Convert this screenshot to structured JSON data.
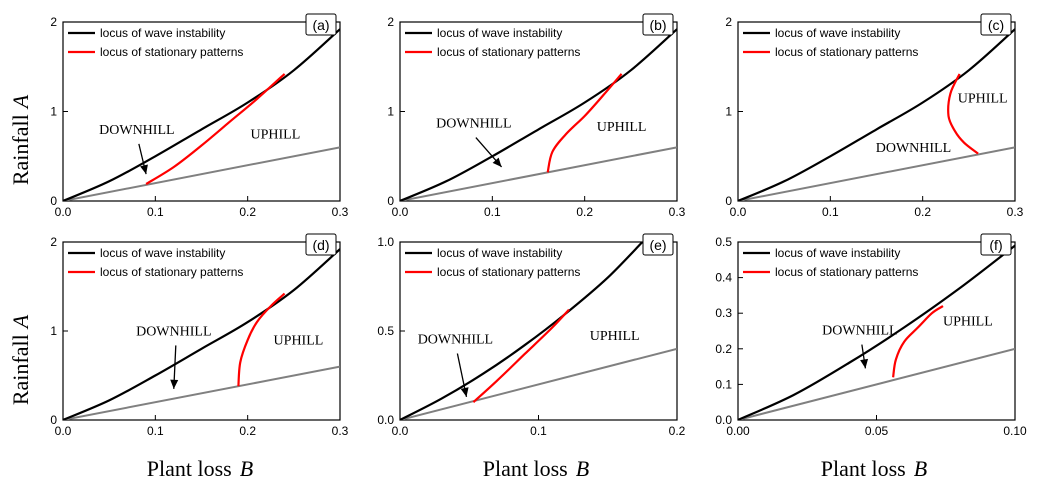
{
  "figure": {
    "ylabel": "Rainfall",
    "ylabel_symbol": "A",
    "xlabel": "Plant loss",
    "xlabel_symbol": "B"
  },
  "colors": {
    "wave": "#000000",
    "stationary": "#ff0000",
    "baseline": "#808080"
  },
  "chart_data": [
    {
      "type": "line",
      "panel": "(a)",
      "xlim": [
        0,
        0.3
      ],
      "ylim": [
        0,
        2
      ],
      "xticks": [
        "0.0",
        "0.1",
        "0.2",
        "0.3"
      ],
      "xtick_values": [
        0,
        0.1,
        0.2,
        0.3
      ],
      "yticks": [
        "0",
        "1",
        "2"
      ],
      "ytick_values": [
        0,
        1,
        2
      ],
      "legend": [
        "locus of wave instability",
        "locus of stationary patterns"
      ],
      "series": [
        {
          "name": "locus of wave instability",
          "color": "#000000",
          "x": [
            0,
            0.05,
            0.1,
            0.15,
            0.2,
            0.25,
            0.3
          ],
          "y": [
            0,
            0.22,
            0.5,
            0.8,
            1.1,
            1.46,
            1.92
          ]
        },
        {
          "name": "locus of stationary patterns",
          "color": "#ff0000",
          "x": [
            0.09,
            0.12,
            0.15,
            0.18,
            0.21,
            0.24
          ],
          "y": [
            0.19,
            0.38,
            0.62,
            0.88,
            1.14,
            1.42
          ]
        },
        {
          "color": "#808080",
          "x": [
            0,
            0.3
          ],
          "y": [
            0,
            0.6
          ]
        }
      ],
      "annotations": [
        {
          "text": "DOWNHILL",
          "x": 0.08,
          "y": 0.75,
          "arrow_to": [
            0.09,
            0.3
          ]
        },
        {
          "text": "UPHILL",
          "x": 0.23,
          "y": 0.7
        }
      ]
    },
    {
      "type": "line",
      "panel": "(b)",
      "xlim": [
        0,
        0.3
      ],
      "ylim": [
        0,
        2
      ],
      "xticks": [
        "0.0",
        "0.1",
        "0.2",
        "0.3"
      ],
      "xtick_values": [
        0,
        0.1,
        0.2,
        0.3
      ],
      "yticks": [
        "0",
        "1",
        "2"
      ],
      "ytick_values": [
        0,
        1,
        2
      ],
      "legend": [
        "locus of wave instability",
        "locus of stationary patterns"
      ],
      "series": [
        {
          "name": "locus of wave instability",
          "color": "#000000",
          "x": [
            0,
            0.05,
            0.1,
            0.15,
            0.2,
            0.25,
            0.3
          ],
          "y": [
            0,
            0.22,
            0.5,
            0.8,
            1.1,
            1.46,
            1.92
          ]
        },
        {
          "name": "locus of stationary patterns",
          "color": "#ff0000",
          "x": [
            0.16,
            0.165,
            0.18,
            0.2,
            0.22,
            0.24
          ],
          "y": [
            0.32,
            0.55,
            0.75,
            0.95,
            1.18,
            1.42
          ]
        },
        {
          "color": "#808080",
          "x": [
            0,
            0.3
          ],
          "y": [
            0,
            0.6
          ]
        }
      ],
      "annotations": [
        {
          "text": "DOWNHILL",
          "x": 0.08,
          "y": 0.82,
          "arrow_to": [
            0.11,
            0.38
          ]
        },
        {
          "text": "UPHILL",
          "x": 0.24,
          "y": 0.78
        }
      ]
    },
    {
      "type": "line",
      "panel": "(c)",
      "xlim": [
        0,
        0.3
      ],
      "ylim": [
        0,
        2
      ],
      "xticks": [
        "0.0",
        "0.1",
        "0.2",
        "0.3"
      ],
      "xtick_values": [
        0,
        0.1,
        0.2,
        0.3
      ],
      "yticks": [
        "0",
        "1",
        "2"
      ],
      "ytick_values": [
        0,
        1,
        2
      ],
      "legend": [
        "locus of wave instability",
        "locus of stationary patterns"
      ],
      "series": [
        {
          "name": "locus of wave instability",
          "color": "#000000",
          "x": [
            0,
            0.05,
            0.1,
            0.15,
            0.2,
            0.25,
            0.3
          ],
          "y": [
            0,
            0.22,
            0.5,
            0.8,
            1.1,
            1.46,
            1.92
          ]
        },
        {
          "name": "locus of stationary patterns",
          "color": "#ff0000",
          "x": [
            0.24,
            0.23,
            0.228,
            0.235,
            0.245,
            0.26
          ],
          "y": [
            1.42,
            1.2,
            0.95,
            0.78,
            0.65,
            0.53
          ]
        },
        {
          "color": "#808080",
          "x": [
            0,
            0.3
          ],
          "y": [
            0,
            0.6
          ]
        }
      ],
      "annotations": [
        {
          "text": "UPHILL",
          "x": 0.265,
          "y": 1.1
        },
        {
          "text": "DOWNHILL",
          "x": 0.19,
          "y": 0.55
        }
      ]
    },
    {
      "type": "line",
      "panel": "(d)",
      "xlim": [
        0,
        0.3
      ],
      "ylim": [
        0,
        2
      ],
      "xticks": [
        "0.0",
        "0.1",
        "0.2",
        "0.3"
      ],
      "xtick_values": [
        0,
        0.1,
        0.2,
        0.3
      ],
      "yticks": [
        "0",
        "1",
        "2"
      ],
      "ytick_values": [
        0,
        1,
        2
      ],
      "legend": [
        "locus of wave instability",
        "locus of stationary patterns"
      ],
      "series": [
        {
          "name": "locus of wave instability",
          "color": "#000000",
          "x": [
            0,
            0.05,
            0.1,
            0.15,
            0.2,
            0.25,
            0.3
          ],
          "y": [
            0,
            0.22,
            0.5,
            0.8,
            1.1,
            1.46,
            1.92
          ]
        },
        {
          "name": "locus of stationary patterns",
          "color": "#ff0000",
          "x": [
            0.19,
            0.192,
            0.2,
            0.21,
            0.225,
            0.24
          ],
          "y": [
            0.38,
            0.65,
            0.9,
            1.1,
            1.28,
            1.42
          ]
        },
        {
          "color": "#808080",
          "x": [
            0,
            0.3
          ],
          "y": [
            0,
            0.6
          ]
        }
      ],
      "annotations": [
        {
          "text": "DOWNHILL",
          "x": 0.12,
          "y": 0.95,
          "arrow_to": [
            0.12,
            0.35
          ]
        },
        {
          "text": "UPHILL",
          "x": 0.255,
          "y": 0.85
        }
      ]
    },
    {
      "type": "line",
      "panel": "(e)",
      "xlim": [
        0,
        0.2
      ],
      "ylim": [
        0,
        1
      ],
      "xticks": [
        "0.0",
        "0.1",
        "0.2"
      ],
      "xtick_values": [
        0,
        0.1,
        0.2
      ],
      "yticks": [
        "0.0",
        "0.5",
        "1.0"
      ],
      "ytick_values": [
        0,
        0.5,
        1
      ],
      "legend": [
        "locus of wave instability",
        "locus of stationary patterns"
      ],
      "series": [
        {
          "name": "locus of wave instability",
          "color": "#000000",
          "x": [
            0,
            0.03,
            0.06,
            0.09,
            0.12,
            0.15,
            0.175
          ],
          "y": [
            0,
            0.12,
            0.26,
            0.42,
            0.6,
            0.8,
            1.0
          ]
        },
        {
          "name": "locus of stationary patterns",
          "color": "#ff0000",
          "x": [
            0.053,
            0.07,
            0.09,
            0.11,
            0.122
          ],
          "y": [
            0.1,
            0.22,
            0.37,
            0.52,
            0.62
          ]
        },
        {
          "color": "#808080",
          "x": [
            0,
            0.2
          ],
          "y": [
            0,
            0.4
          ]
        }
      ],
      "annotations": [
        {
          "text": "DOWNHILL",
          "x": 0.04,
          "y": 0.43,
          "arrow_to": [
            0.048,
            0.13
          ]
        },
        {
          "text": "UPHILL",
          "x": 0.155,
          "y": 0.45
        }
      ]
    },
    {
      "type": "line",
      "panel": "(f)",
      "xlim": [
        0,
        0.1
      ],
      "ylim": [
        0,
        0.5
      ],
      "xticks": [
        "0.00",
        "0.05",
        "0.10"
      ],
      "xtick_values": [
        0,
        0.05,
        0.1
      ],
      "yticks": [
        "0.0",
        "0.1",
        "0.2",
        "0.3",
        "0.4",
        "0.5"
      ],
      "ytick_values": [
        0,
        0.1,
        0.2,
        0.3,
        0.4,
        0.5
      ],
      "legend": [
        "locus of wave instability",
        "locus of stationary patterns"
      ],
      "series": [
        {
          "name": "locus of wave instability",
          "color": "#000000",
          "x": [
            0,
            0.02,
            0.04,
            0.06,
            0.08,
            0.1
          ],
          "y": [
            0,
            0.07,
            0.16,
            0.26,
            0.37,
            0.49
          ]
        },
        {
          "name": "locus of stationary patterns",
          "color": "#ff0000",
          "x": [
            0.056,
            0.057,
            0.06,
            0.065,
            0.07,
            0.074
          ],
          "y": [
            0.12,
            0.17,
            0.22,
            0.26,
            0.3,
            0.32
          ]
        },
        {
          "color": "#808080",
          "x": [
            0,
            0.1
          ],
          "y": [
            0,
            0.2
          ]
        }
      ],
      "annotations": [
        {
          "text": "DOWNHILL",
          "x": 0.044,
          "y": 0.24,
          "arrow_to": [
            0.046,
            0.145
          ]
        },
        {
          "text": "UPHILL",
          "x": 0.083,
          "y": 0.265
        }
      ]
    }
  ]
}
